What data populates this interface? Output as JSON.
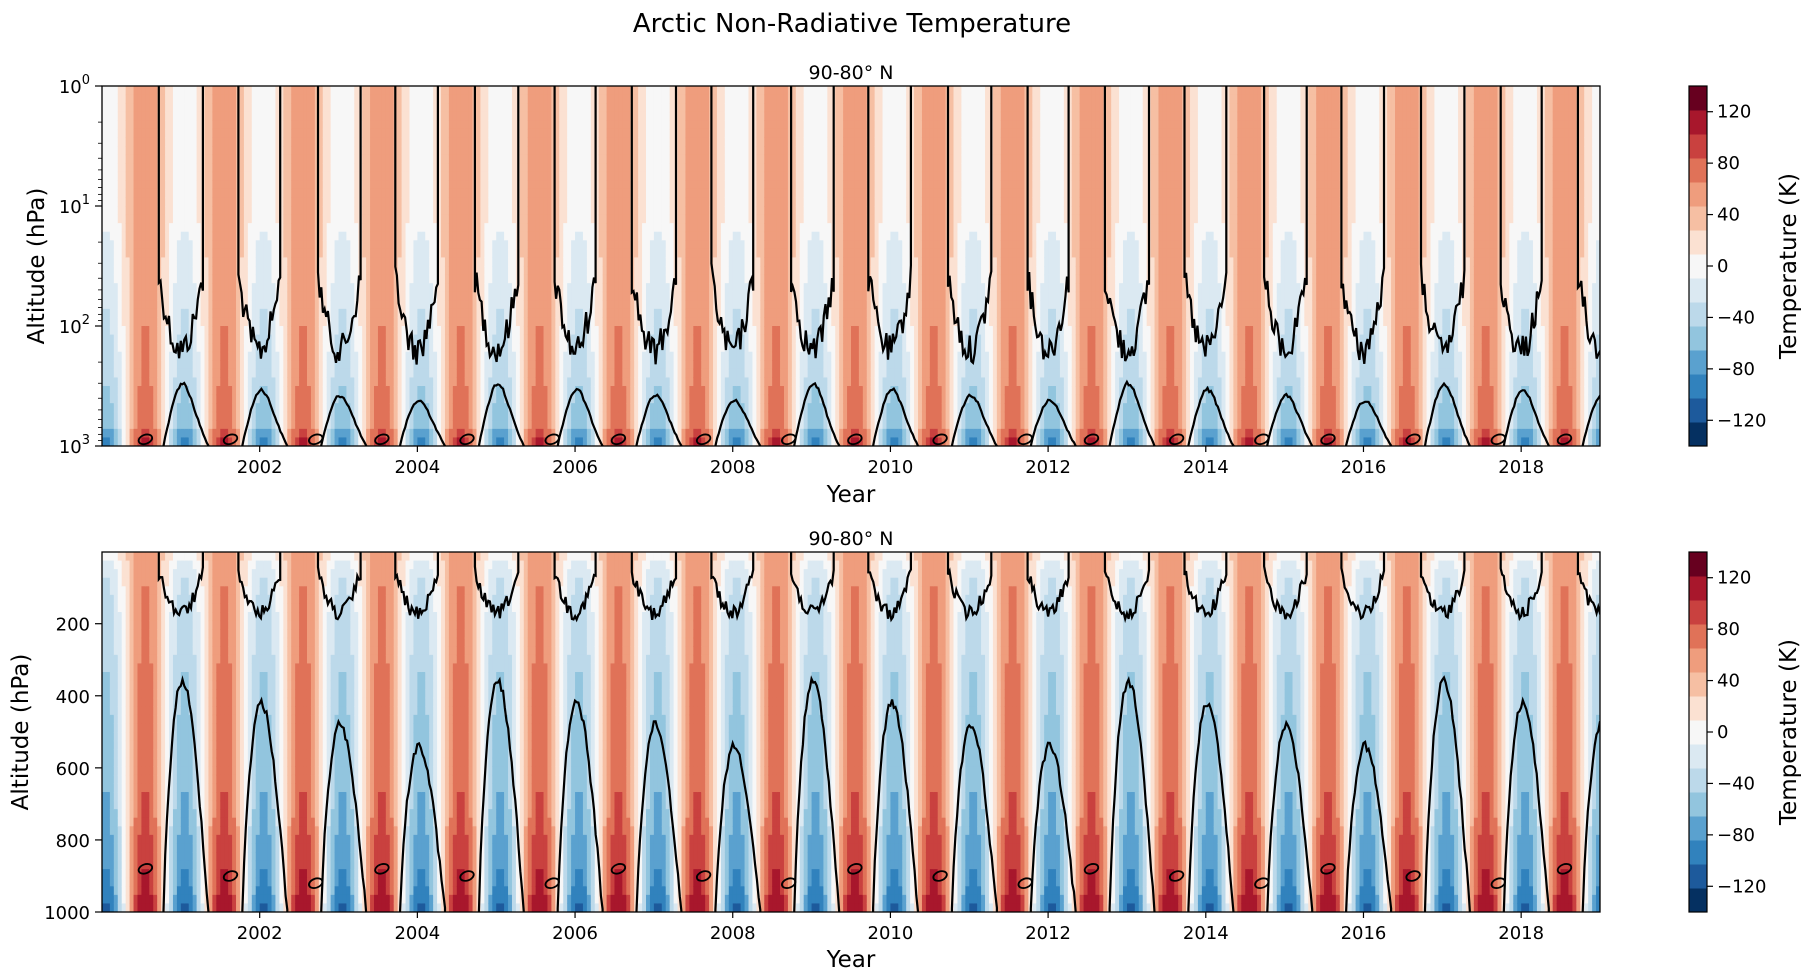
{
  "chart_data": {
    "type": "heatmap",
    "title": "Arctic Non-Radiative Temperature",
    "colormap": "RdBu_r",
    "year_start": 2000,
    "year_end": 2019,
    "years_with_cold_season": [
      2000,
      2001,
      2002,
      2003,
      2004,
      2005,
      2006,
      2007,
      2008,
      2009,
      2010,
      2011,
      2012,
      2013,
      2014,
      2015,
      2016,
      2017,
      2018
    ],
    "contour_levels": [
      -140,
      -120,
      -100,
      -80,
      -60,
      -40,
      -20,
      0,
      20,
      40,
      60,
      80,
      100,
      120,
      140
    ],
    "colors": [
      "#053061",
      "#1d5a9c",
      "#3182bd",
      "#5aa1cf",
      "#92c5de",
      "#bcd9ea",
      "#dbe9f2",
      "#f7f7f7",
      "#fbe1d2",
      "#f6bfa3",
      "#ef9d7d",
      "#e07258",
      "#c9413f",
      "#a8172c",
      "#67001f"
    ],
    "panels": [
      {
        "title": "90-80° N",
        "xlabel": "Year",
        "ylabel": "Altitude (hPa)",
        "yscale": "log",
        "ylim": [
          1000,
          1
        ],
        "yticks": [
          {
            "base": "10",
            "exp": "0"
          },
          {
            "base": "10",
            "exp": "1"
          },
          {
            "base": "10",
            "exp": "2"
          },
          {
            "base": "10",
            "exp": "3"
          }
        ],
        "xticks": [
          "2002",
          "2004",
          "2006",
          "2008",
          "2010",
          "2012",
          "2014",
          "2016",
          "2018"
        ],
        "colorbar": {
          "label": "Temperature (K)",
          "range": [
            -140,
            140
          ],
          "ticks": [
            "120",
            "80",
            "40",
            "0",
            "−40",
            "−80",
            "−120"
          ]
        }
      },
      {
        "title": "90-80° N",
        "xlabel": "Year",
        "ylabel": "Altitude (hPa)",
        "yscale": "linear",
        "ylim": [
          1000,
          1
        ],
        "yticks": [
          "200",
          "400",
          "600",
          "800",
          "1000"
        ],
        "xticks": [
          "2002",
          "2004",
          "2006",
          "2008",
          "2010",
          "2012",
          "2014",
          "2016",
          "2018"
        ],
        "colorbar": {
          "label": "Temperature (K)",
          "range": [
            -140,
            140
          ],
          "ticks": [
            "120",
            "80",
            "40",
            "0",
            "−40",
            "−80",
            "−120"
          ]
        }
      }
    ]
  }
}
